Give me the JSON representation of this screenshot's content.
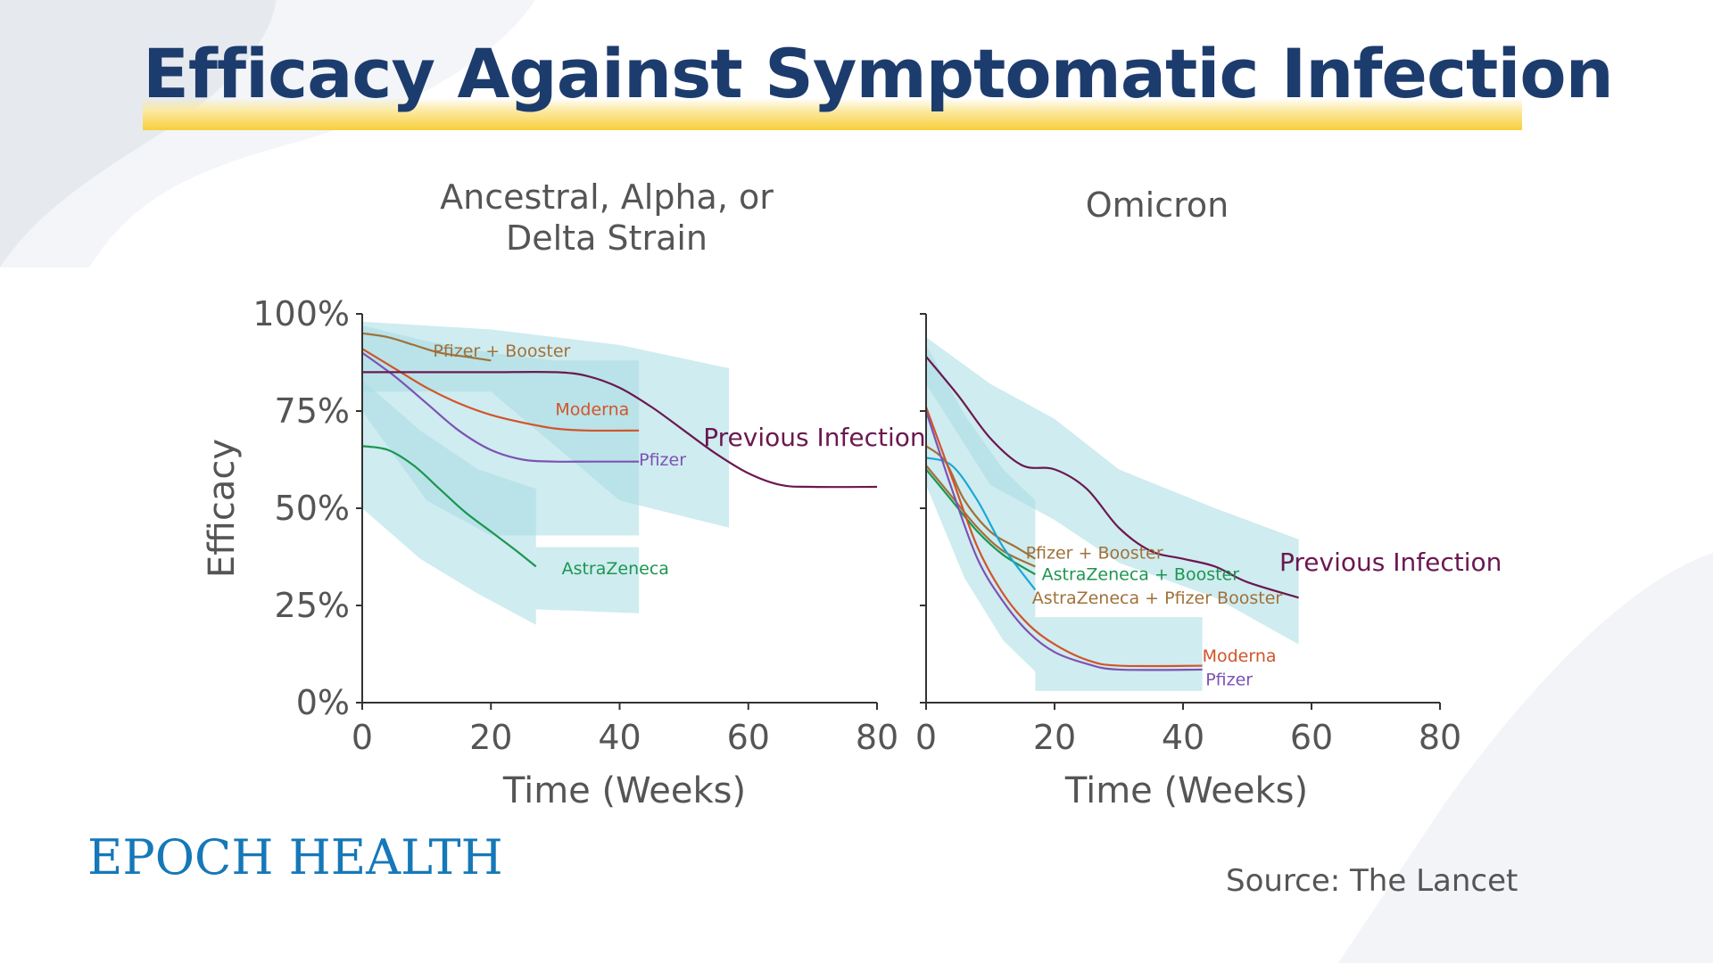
{
  "title": "Efficacy Against Symptomatic Infection",
  "brand": "EPOCH HEALTH",
  "source": "Source: The Lancet",
  "colors": {
    "title": "#1d3c6e",
    "highlight": "#f7cf3c",
    "band": "#a8dde4",
    "pfizer_booster": "#a0713a",
    "moderna": "#d2542a",
    "pfizer": "#7d52b4",
    "astrazeneca": "#1c9650",
    "astrazeneca_booster": "#1c9650",
    "astrazeneca_pfizer_booster": "#a0713a",
    "previous_infection": "#6b1850",
    "brand": "#1578b8"
  },
  "chart_data": [
    {
      "type": "line",
      "subtitle_line1": "Ancestral, Alpha, or",
      "subtitle_line2": "Delta Strain",
      "xlabel": "Time (Weeks)",
      "ylabel": "Efficacy",
      "xlim": [
        0,
        80
      ],
      "ylim": [
        0,
        100
      ],
      "xticks": [
        "0",
        "20",
        "40",
        "60",
        "80"
      ],
      "yticks": [
        "0%",
        "25%",
        "50%",
        "75%",
        "100%"
      ],
      "series": [
        {
          "name": "Pfizer + Booster",
          "color": "#a0713a",
          "label_color": "#a0713a",
          "x": [
            0,
            4,
            8,
            12,
            16,
            20
          ],
          "y": [
            95,
            94,
            92,
            90,
            89,
            88
          ]
        },
        {
          "name": "Moderna",
          "color": "#d2542a",
          "label_color": "#d2542a",
          "x": [
            0,
            5,
            10,
            15,
            20,
            25,
            30,
            35,
            43
          ],
          "y": [
            91,
            86,
            81,
            77,
            74,
            72,
            70.5,
            70,
            70
          ]
        },
        {
          "name": "Pfizer",
          "color": "#7d52b4",
          "label_color": "#7d52b4",
          "x": [
            0,
            5,
            10,
            15,
            20,
            25,
            30,
            35,
            43
          ],
          "y": [
            90,
            84,
            77,
            70,
            65,
            62.5,
            62,
            62,
            62
          ]
        },
        {
          "name": "AstraZeneca",
          "color": "#1c9650",
          "label_color": "#1c9650",
          "x": [
            0,
            4,
            8,
            12,
            16,
            20,
            24,
            27
          ],
          "y": [
            66,
            65,
            61,
            55,
            49,
            44,
            39,
            35
          ]
        },
        {
          "name": "Previous Infection",
          "color": "#6b1850",
          "label_color": "#6b1850",
          "x": [
            0,
            10,
            20,
            30,
            35,
            40,
            45,
            50,
            55,
            60,
            65,
            70,
            80
          ],
          "y": [
            85,
            85,
            85,
            85,
            84,
            81,
            76,
            70,
            64,
            59,
            56,
            55.5,
            55.5
          ]
        }
      ],
      "bands": [
        {
          "series": "Previous Infection",
          "x": [
            0,
            20,
            40,
            57
          ],
          "upper": [
            98,
            96,
            92,
            86
          ],
          "lower": [
            80,
            80,
            52,
            45
          ]
        },
        {
          "series": "Moderna / Pfizer",
          "x": [
            0,
            10,
            20,
            30,
            43
          ],
          "upper": [
            97,
            93,
            90,
            88,
            88
          ],
          "lower": [
            75,
            52,
            43,
            43,
            43
          ]
        },
        {
          "series": "AstraZeneca",
          "x": [
            0,
            9,
            18,
            27
          ],
          "upper": [
            83,
            70,
            60,
            55
          ],
          "lower": [
            50,
            37,
            28,
            20
          ]
        },
        {
          "series": "AstraZeneca extended",
          "x": [
            27,
            43
          ],
          "upper": [
            40,
            40
          ],
          "lower": [
            24,
            23
          ]
        }
      ],
      "label_positions_note": "",
      "grid": false
    },
    {
      "type": "line",
      "subtitle": "Omicron",
      "xlabel": "Time (Weeks)",
      "ylabel": "",
      "xlim": [
        0,
        80
      ],
      "ylim": [
        0,
        100
      ],
      "xticks": [
        "0",
        "20",
        "40",
        "60",
        "80"
      ],
      "series": [
        {
          "name": "Previous Infection",
          "color": "#6b1850",
          "label_color": "#6b1850",
          "x": [
            0,
            5,
            10,
            15,
            20,
            25,
            30,
            35,
            40,
            45,
            50,
            58
          ],
          "y": [
            89,
            79,
            68,
            61,
            60,
            55,
            45,
            39,
            37,
            35,
            31,
            27
          ]
        },
        {
          "name": "Pfizer + Booster",
          "color": "#a0713a",
          "label_color": "#a0713a",
          "x": [
            0,
            3,
            6,
            10,
            14,
            17
          ],
          "y": [
            66,
            62,
            52,
            44,
            40,
            37
          ]
        },
        {
          "name": "AstraZeneca + Booster",
          "color": "#1c9650",
          "label_color": "#1c9650",
          "x": [
            0,
            4,
            8,
            12,
            17
          ],
          "y": [
            60,
            52,
            44,
            38,
            33
          ]
        },
        {
          "name": "AstraZeneca + Pfizer Booster",
          "color": "#a0713a",
          "label_color": "#a0713a",
          "x": [
            0,
            4,
            8,
            12,
            17
          ],
          "y": [
            61,
            53,
            45,
            39,
            35
          ]
        },
        {
          "name": "",
          "color": "#1aa8d6",
          "x": [
            0,
            4,
            8,
            12,
            17
          ],
          "y": [
            63,
            61,
            52,
            40,
            29
          ]
        },
        {
          "name": "Moderna",
          "color": "#d2542a",
          "label_color": "#d2542a",
          "x": [
            0,
            4,
            8,
            12,
            16,
            20,
            25,
            30,
            43
          ],
          "y": [
            76,
            58,
            40,
            28,
            20,
            15,
            11,
            9.5,
            9.5
          ]
        },
        {
          "name": "Pfizer",
          "color": "#7d52b4",
          "label_color": "#7d52b4",
          "x": [
            0,
            4,
            8,
            12,
            16,
            20,
            25,
            30,
            43
          ],
          "y": [
            75,
            55,
            37,
            26,
            18,
            13,
            10,
            8.5,
            8.5
          ]
        }
      ],
      "bands": [
        {
          "series": "Previous Infection",
          "x": [
            0,
            10,
            20,
            30,
            45,
            58
          ],
          "upper": [
            94,
            82,
            73,
            60,
            50,
            42
          ],
          "lower": [
            82,
            56,
            47,
            36,
            27,
            15
          ]
        },
        {
          "series": "Vaccines",
          "x": [
            0,
            6,
            12,
            17
          ],
          "upper": [
            92,
            74,
            60,
            52
          ],
          "lower": [
            56,
            32,
            16,
            8
          ]
        },
        {
          "series": "Vaccines extended",
          "x": [
            17,
            43
          ],
          "upper": [
            22,
            22
          ],
          "lower": [
            3,
            3
          ]
        }
      ],
      "grid": false
    }
  ]
}
